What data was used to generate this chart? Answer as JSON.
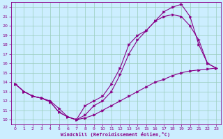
{
  "xlabel": "Windchill (Refroidissement éolien,°C)",
  "bg_color": "#cceeff",
  "line_color": "#880088",
  "grid_color": "#99ccbb",
  "xlim": [
    -0.5,
    23.5
  ],
  "ylim": [
    9.5,
    22.5
  ],
  "xticks": [
    0,
    1,
    2,
    3,
    4,
    5,
    6,
    7,
    8,
    9,
    10,
    11,
    12,
    13,
    14,
    15,
    16,
    17,
    18,
    19,
    20,
    21,
    22,
    23
  ],
  "yticks": [
    10,
    11,
    12,
    13,
    14,
    15,
    16,
    17,
    18,
    19,
    20,
    21,
    22
  ],
  "line1_x": [
    0,
    1,
    2,
    3,
    4,
    5,
    6,
    7,
    8,
    9,
    10,
    11,
    12,
    13,
    14,
    15,
    16,
    17,
    18,
    19,
    20,
    21,
    22,
    23
  ],
  "line1_y": [
    13.8,
    13.0,
    12.5,
    12.3,
    12.0,
    11.2,
    10.3,
    10.0,
    10.2,
    10.5,
    11.0,
    11.5,
    12.0,
    12.5,
    13.0,
    13.5,
    14.0,
    14.3,
    14.7,
    15.0,
    15.2,
    15.3,
    15.4,
    15.5
  ],
  "line2_x": [
    0,
    1,
    2,
    3,
    4,
    5,
    6,
    7,
    8,
    9,
    10,
    11,
    12,
    13,
    14,
    15,
    16,
    17,
    18,
    19,
    20,
    21,
    22,
    23
  ],
  "line2_y": [
    13.8,
    13.0,
    12.5,
    12.3,
    11.9,
    10.8,
    10.3,
    10.0,
    10.5,
    11.5,
    12.0,
    13.0,
    14.8,
    17.0,
    18.5,
    19.5,
    20.5,
    21.0,
    21.2,
    21.0,
    20.0,
    18.5,
    16.0,
    15.5
  ],
  "line3_x": [
    0,
    1,
    2,
    3,
    4,
    5,
    6,
    7,
    8,
    9,
    10,
    11,
    12,
    13,
    14,
    15,
    16,
    17,
    18,
    19,
    20,
    21,
    22,
    23
  ],
  "line3_y": [
    13.8,
    13.0,
    12.5,
    12.3,
    11.9,
    10.8,
    10.3,
    10.0,
    11.5,
    12.0,
    12.5,
    13.8,
    15.5,
    18.0,
    19.0,
    19.5,
    20.5,
    21.5,
    22.0,
    22.3,
    21.0,
    18.0,
    16.0,
    15.5
  ]
}
